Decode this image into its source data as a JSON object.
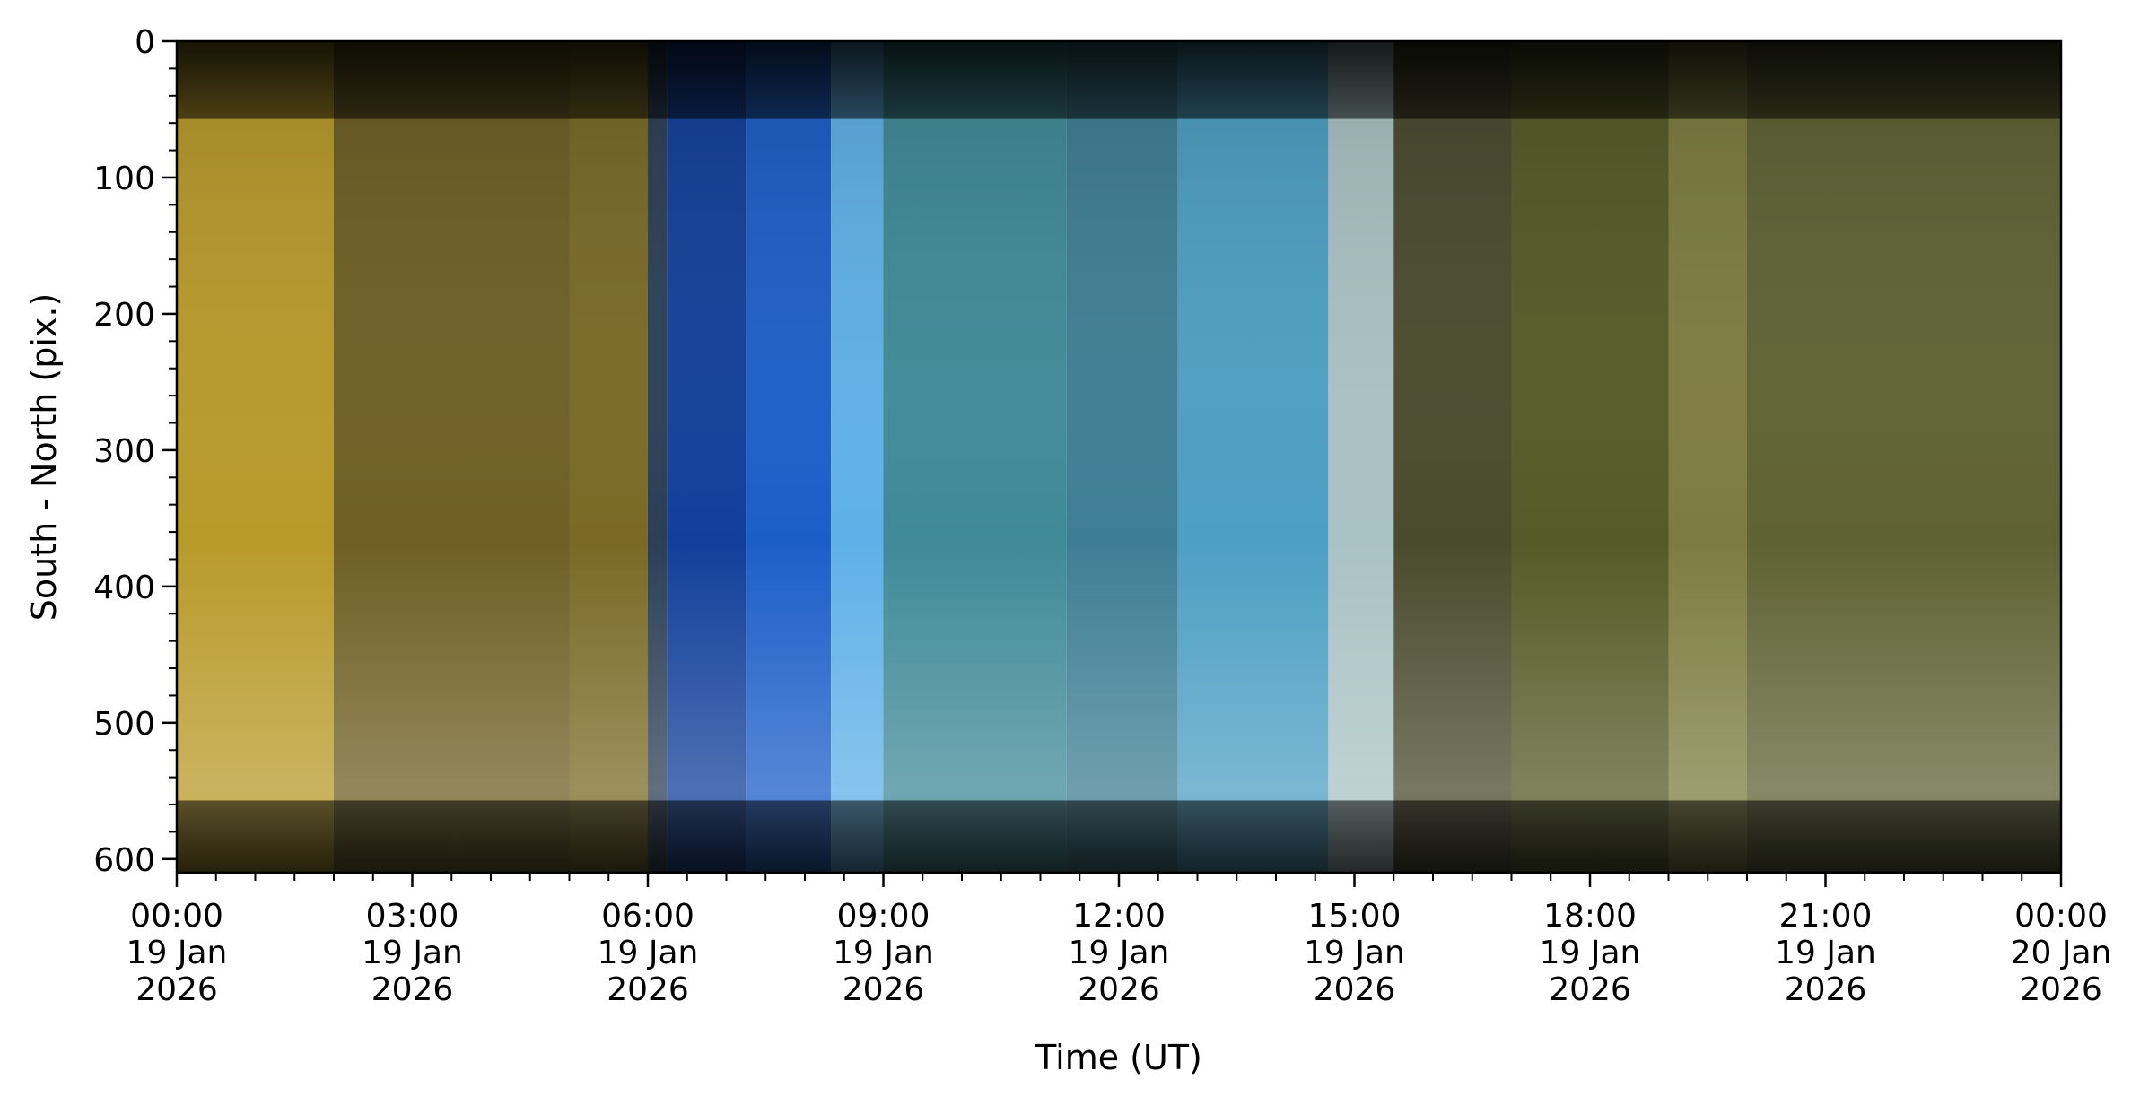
{
  "chart_data": {
    "type": "heatmap",
    "title": "",
    "xlabel": "Time (UT)",
    "ylabel": "South - North (pix.)",
    "x_range": [
      "2026-01-19T00:00",
      "2026-01-20T00:00"
    ],
    "ylim": [
      0,
      610
    ],
    "y_inverted": true,
    "grid": false,
    "legend": "none",
    "x_ticks": [
      {
        "time": "2026-01-19T00:00",
        "label": [
          "00:00",
          "19 Jan",
          "2026"
        ]
      },
      {
        "time": "2026-01-19T03:00",
        "label": [
          "03:00",
          "19 Jan",
          "2026"
        ]
      },
      {
        "time": "2026-01-19T06:00",
        "label": [
          "06:00",
          "19 Jan",
          "2026"
        ]
      },
      {
        "time": "2026-01-19T09:00",
        "label": [
          "09:00",
          "19 Jan",
          "2026"
        ]
      },
      {
        "time": "2026-01-19T12:00",
        "label": [
          "12:00",
          "19 Jan",
          "2026"
        ]
      },
      {
        "time": "2026-01-19T15:00",
        "label": [
          "15:00",
          "19 Jan",
          "2026"
        ]
      },
      {
        "time": "2026-01-19T18:00",
        "label": [
          "18:00",
          "19 Jan",
          "2026"
        ]
      },
      {
        "time": "2026-01-19T21:00",
        "label": [
          "21:00",
          "19 Jan",
          "2026"
        ]
      },
      {
        "time": "2026-01-20T00:00",
        "label": [
          "00:00",
          "20 Jan",
          "2026"
        ]
      }
    ],
    "x_minor_tick_minutes": 30,
    "y_ticks": [
      0,
      100,
      200,
      300,
      400,
      500,
      600
    ],
    "y_minor_step": 20,
    "time_bands": [
      {
        "start": "2026-01-19T00:00",
        "end": "2026-01-19T02:00",
        "color": "#b89a2a"
      },
      {
        "start": "2026-01-19T02:00",
        "end": "2026-01-19T05:00",
        "color": "#6f5f24"
      },
      {
        "start": "2026-01-19T05:00",
        "end": "2026-01-19T06:00",
        "color": "#7a6a26"
      },
      {
        "start": "2026-01-19T06:00",
        "end": "2026-01-19T06:15",
        "color": "#2c3f56"
      },
      {
        "start": "2026-01-19T06:15",
        "end": "2026-01-19T07:15",
        "color": "#123f9a"
      },
      {
        "start": "2026-01-19T07:15",
        "end": "2026-01-19T08:20",
        "color": "#1c5ec8"
      },
      {
        "start": "2026-01-19T08:20",
        "end": "2026-01-19T09:00",
        "color": "#5fb0e8"
      },
      {
        "start": "2026-01-19T09:00",
        "end": "2026-01-19T11:20",
        "color": "#3f8a98"
      },
      {
        "start": "2026-01-19T11:20",
        "end": "2026-01-19T12:45",
        "color": "#3e7e94"
      },
      {
        "start": "2026-01-19T12:45",
        "end": "2026-01-19T14:40",
        "color": "#4d9fc4"
      },
      {
        "start": "2026-01-19T14:40",
        "end": "2026-01-19T15:30",
        "color": "#a9c2c4"
      },
      {
        "start": "2026-01-19T15:30",
        "end": "2026-01-19T17:00",
        "color": "#4a4a2e"
      },
      {
        "start": "2026-01-19T17:00",
        "end": "2026-01-19T19:00",
        "color": "#555a26"
      },
      {
        "start": "2026-01-19T19:00",
        "end": "2026-01-19T20:00",
        "color": "#7d7c40"
      },
      {
        "start": "2026-01-19T20:00",
        "end": "2026-01-20T00:00",
        "color": "#5f6233"
      }
    ]
  }
}
